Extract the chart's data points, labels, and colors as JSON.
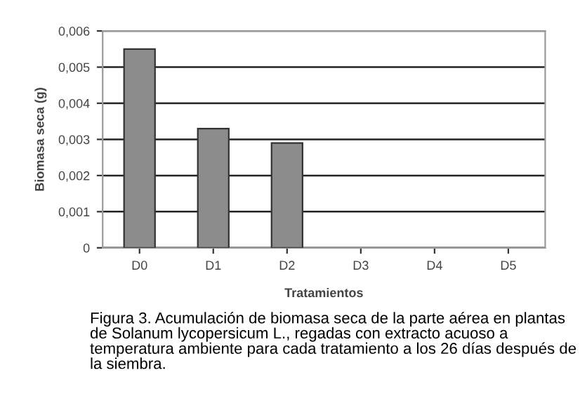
{
  "chart_data": {
    "type": "bar",
    "xlabel": "Tratamientos",
    "ylabel": "Biomasa seca (g)",
    "categories": [
      "D0",
      "D1",
      "D2",
      "D3",
      "D4",
      "D5"
    ],
    "values": [
      0.0055,
      0.0033,
      0.0029,
      0,
      0,
      0
    ],
    "color": "#8c8c8c",
    "ylim": [
      0,
      0.006
    ],
    "yticks": [
      0,
      {
        "value": 0.001,
        "label": "0,001"
      },
      {
        "value": 0.002,
        "label": "0,002"
      },
      {
        "value": 0.003,
        "label": "0,003"
      },
      {
        "value": 0.004,
        "label": "0,004"
      },
      {
        "value": 0.005,
        "label": "0,005"
      },
      {
        "value": 0.006,
        "label": "0,006"
      }
    ],
    "grid": "y",
    "annotations": [
      "Figura 3. Acumulación de biomasa seca de la parte aérea en plantas de Solanum lycopersicum L., regadas con extracto acuoso a temperatura ambiente para cada tratamiento a los 26 días después de la siembra."
    ]
  }
}
